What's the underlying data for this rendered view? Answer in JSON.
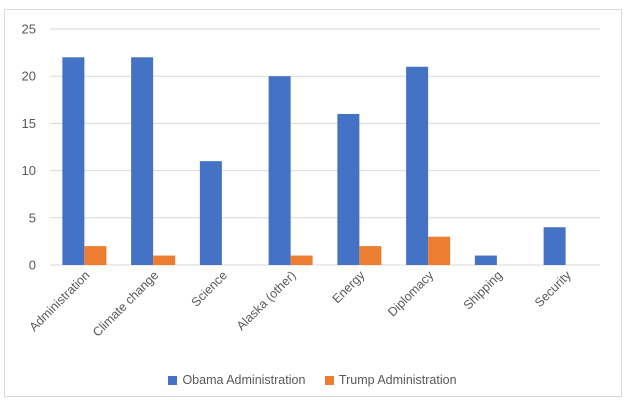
{
  "chart_data": {
    "type": "bar",
    "title": "",
    "xlabel": "",
    "ylabel": "",
    "categories": [
      "Administration",
      "Climate change",
      "Science",
      "Alaska (other)",
      "Energy",
      "Diplomacy",
      "Shipping",
      "Security"
    ],
    "series": [
      {
        "name": "Obama Administration",
        "color": "#4472c4",
        "values": [
          22,
          22,
          11,
          20,
          16,
          21,
          1,
          4
        ]
      },
      {
        "name": "Trump Administration",
        "color": "#ed7d31",
        "values": [
          2,
          1,
          0,
          1,
          2,
          3,
          0,
          0
        ]
      }
    ],
    "ylim": [
      0,
      25
    ],
    "yticks": [
      0,
      5,
      10,
      15,
      20,
      25
    ],
    "grid": true,
    "legend_position": "bottom"
  }
}
